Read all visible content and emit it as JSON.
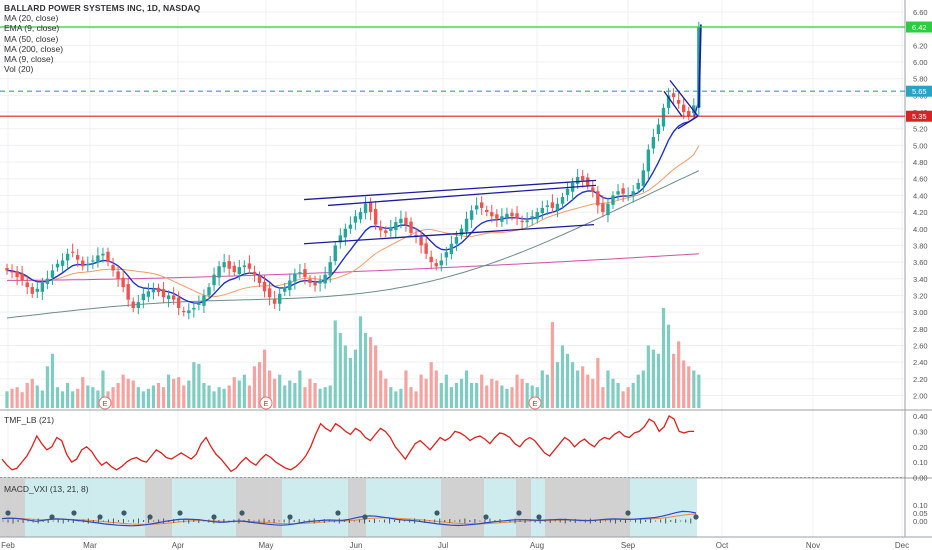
{
  "legend": {
    "title": "BALLARD POWER SYSTEMS INC, 1D, NASDAQ",
    "lines": [
      "MA (20, close)",
      "EMA (9, close)",
      "MA (50, close)",
      "MA (200, close)",
      "MA (9, close)",
      "Vol (20)"
    ]
  },
  "tmf_panel": {
    "title": "TMF_LB (21)"
  },
  "macd_panel": {
    "title": "MACD_VXI (13, 21, 8)"
  },
  "earnings_marker": "E",
  "colors": {
    "up": "#26a69a",
    "down": "#ef5350",
    "vol_up": "#7fcdc2",
    "vol_down": "#f4a3a0",
    "ma20": "#f39c65",
    "ema9": "#1f33cc",
    "ma50": "#6b8e88",
    "ma200": "#d14fa8",
    "tmf": "#e0201b",
    "macd": "#2b48c8",
    "signal": "#f0883e",
    "support_line": "#d62424",
    "resistance_line": "#2ecc40",
    "dashed_line": "#29a3c4",
    "trend_lines": "#1c1c9e",
    "macd_bg_grey": "#c9c9c9",
    "macd_bg_teal": "#c6e9ea"
  },
  "chart_data": {
    "type": "candlestick",
    "x_tick_labels": [
      "Feb",
      "Mar",
      "Apr",
      "May",
      "Jun",
      "Jul",
      "Aug",
      "Sep",
      "Oct",
      "Nov",
      "Dec"
    ],
    "y_tick_labels": [
      "2.00",
      "2.20",
      "2.40",
      "2.60",
      "2.80",
      "3.00",
      "3.20",
      "3.40",
      "3.60",
      "3.80",
      "4.00",
      "4.20",
      "4.40",
      "4.60",
      "4.80",
      "5.00",
      "5.20",
      "5.40",
      "5.60",
      "5.80",
      "6.00",
      "6.20",
      "6.40",
      "6.60"
    ],
    "ylim": [
      1.85,
      6.65
    ],
    "closes": [
      3.5,
      3.48,
      3.42,
      3.38,
      3.3,
      3.22,
      3.28,
      3.35,
      3.4,
      3.5,
      3.58,
      3.62,
      3.7,
      3.72,
      3.63,
      3.55,
      3.58,
      3.62,
      3.68,
      3.7,
      3.6,
      3.5,
      3.4,
      3.3,
      3.15,
      3.05,
      3.12,
      3.22,
      3.25,
      3.28,
      3.24,
      3.18,
      3.2,
      3.15,
      3.05,
      3.0,
      3.02,
      3.05,
      3.1,
      3.2,
      3.3,
      3.45,
      3.55,
      3.6,
      3.52,
      3.48,
      3.54,
      3.56,
      3.52,
      3.45,
      3.35,
      3.25,
      3.18,
      3.1,
      3.22,
      3.3,
      3.38,
      3.46,
      3.48,
      3.42,
      3.35,
      3.32,
      3.38,
      3.45,
      3.6,
      3.8,
      3.92,
      4.0,
      4.05,
      4.15,
      4.2,
      4.3,
      4.2,
      4.05,
      3.98,
      3.95,
      4.02,
      4.08,
      4.12,
      4.05,
      3.95,
      3.9,
      3.8,
      3.7,
      3.6,
      3.55,
      3.62,
      3.72,
      3.82,
      3.9,
      4.0,
      4.12,
      4.22,
      4.28,
      4.25,
      4.2,
      4.15,
      4.12,
      4.15,
      4.18,
      4.15,
      4.12,
      4.08,
      4.1,
      4.15,
      4.2,
      4.25,
      4.28,
      4.25,
      4.3,
      4.38,
      4.48,
      4.55,
      4.62,
      4.58,
      4.52,
      4.45,
      4.28,
      4.2,
      4.3,
      4.4,
      4.45,
      4.42,
      4.4,
      4.45,
      4.55,
      4.7,
      4.95,
      5.1,
      5.25,
      5.45,
      5.6,
      5.58,
      5.5,
      5.4,
      5.35,
      5.48,
      6.42
    ],
    "volume_baseline": 1.85,
    "volumes": [
      2.05,
      2.08,
      2.1,
      2.04,
      2.15,
      2.2,
      2.12,
      2.06,
      2.35,
      2.5,
      2.1,
      2.05,
      2.15,
      2.05,
      2.08,
      2.22,
      2.12,
      2.1,
      2.06,
      2.3,
      2.05,
      2.1,
      2.15,
      2.25,
      2.2,
      2.18,
      2.1,
      2.05,
      2.08,
      2.12,
      2.15,
      2.1,
      2.25,
      2.2,
      2.22,
      2.12,
      2.18,
      2.4,
      2.38,
      2.15,
      2.12,
      2.05,
      2.1,
      2.08,
      2.12,
      2.22,
      2.18,
      2.25,
      2.12,
      2.35,
      2.4,
      2.55,
      2.3,
      2.2,
      2.25,
      2.12,
      2.18,
      2.15,
      2.3,
      2.1,
      2.2,
      2.15,
      2.08,
      2.1,
      2.12,
      2.9,
      2.75,
      2.6,
      2.45,
      2.55,
      2.95,
      2.75,
      2.7,
      2.6,
      2.3,
      2.2,
      2.1,
      2.05,
      2.08,
      2.3,
      2.1,
      2.05,
      2.25,
      2.2,
      2.4,
      2.3,
      2.15,
      2.25,
      2.1,
      2.15,
      2.2,
      2.3,
      2.15,
      2.15,
      2.25,
      2.12,
      2.2,
      2.18,
      2.12,
      2.08,
      2.1,
      2.25,
      2.2,
      2.15,
      2.12,
      2.1,
      2.3,
      2.25,
      2.88,
      2.4,
      2.6,
      2.5,
      2.4,
      2.3,
      2.35,
      2.25,
      2.2,
      2.45,
      2.1,
      2.3,
      2.2,
      2.15,
      2.05,
      2.1,
      2.15,
      2.25,
      2.3,
      2.6,
      2.55,
      2.5,
      3.05,
      2.85,
      2.5,
      2.65,
      2.42,
      2.35,
      2.3,
      2.25
    ]
  }
}
